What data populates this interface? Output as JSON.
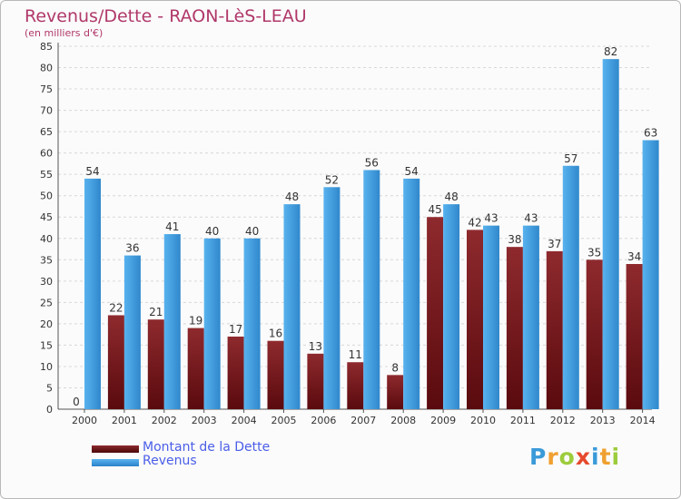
{
  "title": "Revenus/Dette - RAON-LèS-LEAU",
  "subtitle": "(en milliers d'€)",
  "logo": {
    "letters": [
      "P",
      "r",
      "o",
      "x",
      "i",
      "t",
      "i"
    ],
    "colors": [
      "#3a9ad9",
      "#f0a030",
      "#9ccc3c",
      "#e64a2e",
      "#3a9ad9",
      "#f0a030",
      "#9ccc3c"
    ]
  },
  "colors": {
    "dette": "#7a1a1e",
    "revenus": "#3f9fe0",
    "title": "#b0386a",
    "legend_text": "#4a5ee8"
  },
  "legend": [
    {
      "label": "Montant de la Dette",
      "color": "#7a1a1e"
    },
    {
      "label": "Revenus",
      "color": "#3f9fe0"
    }
  ],
  "chart_data": {
    "type": "bar",
    "categories": [
      "2000",
      "2001",
      "2002",
      "2003",
      "2004",
      "2005",
      "2006",
      "2007",
      "2008",
      "2009",
      "2010",
      "2011",
      "2012",
      "2013",
      "2014"
    ],
    "series": [
      {
        "name": "Montant de la Dette",
        "values": [
          0,
          22,
          21,
          19,
          17,
          16,
          13,
          11,
          8,
          45,
          42,
          38,
          37,
          35,
          34
        ]
      },
      {
        "name": "Revenus",
        "values": [
          54,
          36,
          41,
          40,
          40,
          48,
          52,
          56,
          54,
          48,
          43,
          43,
          57,
          82,
          63
        ]
      }
    ],
    "yticks": [
      "0",
      "5",
      "10",
      "15",
      "20",
      "25",
      "30",
      "35",
      "40",
      "45",
      "50",
      "55",
      "60",
      "65",
      "70",
      "75",
      "80",
      "85"
    ],
    "ylim": [
      0,
      85
    ],
    "grid": true,
    "legend_position": "bottom-left"
  }
}
